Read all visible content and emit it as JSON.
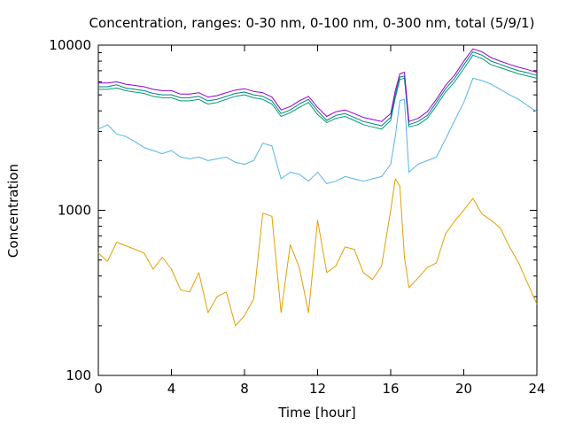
{
  "chart_data": {
    "type": "line",
    "title": "Concentration, ranges: 0-30 nm, 0-100 nm, 0-300 nm, total (5/9/1)",
    "xlabel": "Time [hour]",
    "ylabel": "Concentration",
    "xlim": [
      0,
      24
    ],
    "ylim": [
      100,
      10000
    ],
    "yscale": "log",
    "grid": false,
    "legend": "none",
    "x_ticks": [
      0,
      4,
      8,
      12,
      16,
      20,
      24
    ],
    "x_tick_labels": [
      "0",
      "4",
      "8",
      "12",
      "16",
      "20",
      "24"
    ],
    "y_ticks": [
      100,
      1000,
      10000
    ],
    "y_tick_labels": [
      "100",
      "1000",
      "10000"
    ],
    "x": [
      0,
      0.5,
      1,
      1.5,
      2,
      2.5,
      3,
      3.5,
      4,
      4.5,
      5,
      5.5,
      6,
      6.5,
      7,
      7.5,
      8,
      8.5,
      9,
      9.5,
      10,
      10.5,
      11,
      11.5,
      12,
      12.5,
      13,
      13.5,
      14,
      14.5,
      15,
      15.5,
      16,
      16.25,
      16.5,
      16.75,
      17,
      17.5,
      18,
      18.5,
      19,
      19.5,
      20,
      20.5,
      21,
      21.5,
      22,
      22.5,
      23,
      23.5,
      24
    ],
    "series": [
      {
        "color": "#e0a000",
        "values": [
          550,
          490,
          640,
          610,
          580,
          550,
          440,
          520,
          440,
          330,
          320,
          420,
          240,
          300,
          320,
          200,
          230,
          290,
          960,
          920,
          240,
          620,
          450,
          240,
          870,
          420,
          460,
          600,
          580,
          420,
          380,
          460,
          1000,
          1550,
          1400,
          520,
          340,
          390,
          450,
          480,
          720,
          860,
          1000,
          1180,
          950,
          870,
          780,
          600,
          480,
          360,
          270
        ]
      },
      {
        "color": "#56b4e9",
        "values": [
          3100,
          3300,
          2900,
          2800,
          2600,
          2400,
          2300,
          2200,
          2300,
          2100,
          2050,
          2100,
          2000,
          2050,
          2100,
          1950,
          1900,
          2000,
          2550,
          2450,
          1550,
          1700,
          1650,
          1500,
          1700,
          1450,
          1500,
          1600,
          1550,
          1500,
          1550,
          1600,
          1900,
          2800,
          4600,
          4700,
          1700,
          1900,
          2000,
          2100,
          2700,
          3500,
          4500,
          6300,
          6100,
          5800,
          5400,
          5000,
          4700,
          4300,
          3950
        ]
      },
      {
        "color": "#009e73",
        "values": [
          5400,
          5400,
          5500,
          5300,
          5200,
          5100,
          4900,
          4800,
          4800,
          4600,
          4600,
          4700,
          4400,
          4500,
          4700,
          4900,
          5000,
          4800,
          4700,
          4400,
          3700,
          3900,
          4200,
          4500,
          3800,
          3400,
          3600,
          3700,
          3500,
          3300,
          3200,
          3100,
          3500,
          4800,
          6200,
          6300,
          3200,
          3300,
          3600,
          4300,
          5200,
          6000,
          7200,
          8700,
          8300,
          7600,
          7300,
          7000,
          6700,
          6500,
          6300
        ]
      },
      {
        "color": "#008080",
        "values": [
          5600,
          5600,
          5750,
          5500,
          5400,
          5300,
          5100,
          5000,
          5000,
          4800,
          4800,
          4900,
          4600,
          4700,
          4900,
          5100,
          5200,
          5000,
          4900,
          4600,
          3850,
          4050,
          4400,
          4700,
          4000,
          3500,
          3750,
          3850,
          3650,
          3450,
          3350,
          3250,
          3650,
          5000,
          6400,
          6500,
          3300,
          3450,
          3750,
          4500,
          5450,
          6300,
          7600,
          9100,
          8700,
          8000,
          7650,
          7300,
          7000,
          6800,
          6550
        ]
      },
      {
        "color": "#9400d3",
        "values": [
          5900,
          5900,
          6000,
          5800,
          5700,
          5600,
          5400,
          5300,
          5300,
          5050,
          5050,
          5150,
          4850,
          4950,
          5150,
          5350,
          5450,
          5250,
          5150,
          4850,
          4050,
          4250,
          4600,
          4900,
          4200,
          3700,
          3950,
          4050,
          3850,
          3650,
          3550,
          3450,
          3850,
          5300,
          6700,
          6850,
          3450,
          3600,
          3950,
          4700,
          5700,
          6600,
          8000,
          9500,
          9100,
          8400,
          8000,
          7650,
          7350,
          7100,
          6850
        ]
      }
    ]
  }
}
